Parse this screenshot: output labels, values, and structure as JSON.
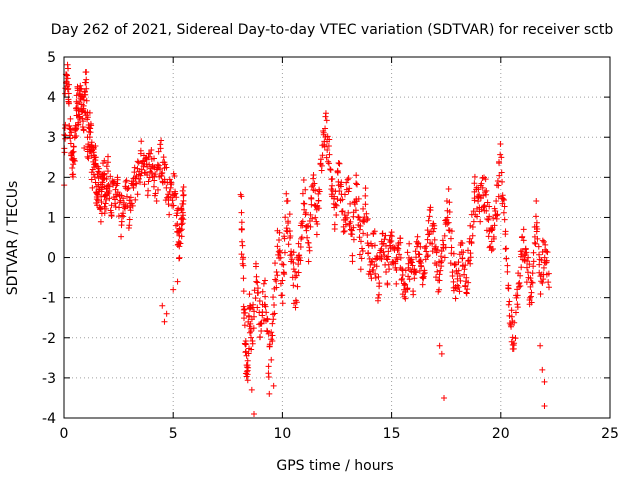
{
  "chart_data": {
    "type": "scatter",
    "title": "Day 262 of 2021, Sidereal Day-to-day VTEC variation (SDTVAR) for receiver sctb",
    "xlabel": "GPS time / hours",
    "ylabel": "SDTVAR / TECUs",
    "xlim": [
      0,
      25
    ],
    "ylim": [
      -4,
      5
    ],
    "xticks": [
      0,
      5,
      10,
      15,
      20,
      25
    ],
    "yticks": [
      -4,
      -3,
      -2,
      -1,
      0,
      1,
      2,
      3,
      4,
      5
    ],
    "grid": true,
    "marker": "+",
    "series_color": "#ff0000",
    "trace": [
      [
        0.0,
        2.0
      ],
      [
        0.1,
        4.7
      ],
      [
        0.2,
        4.3
      ],
      [
        0.3,
        3.0
      ],
      [
        0.4,
        2.0
      ],
      [
        0.5,
        2.8
      ],
      [
        0.6,
        4.0
      ],
      [
        0.7,
        3.6
      ],
      [
        0.8,
        4.1
      ],
      [
        0.9,
        3.2
      ],
      [
        1.0,
        4.3
      ],
      [
        1.1,
        2.8
      ],
      [
        1.2,
        3.2
      ],
      [
        1.3,
        2.2
      ],
      [
        1.4,
        2.6
      ],
      [
        1.5,
        1.7
      ],
      [
        1.6,
        2.0
      ],
      [
        1.7,
        1.3
      ],
      [
        1.8,
        2.1
      ],
      [
        1.9,
        1.5
      ],
      [
        2.0,
        2.2
      ],
      [
        2.2,
        1.4
      ],
      [
        2.4,
        1.8
      ],
      [
        2.6,
        1.0
      ],
      [
        2.8,
        1.6
      ],
      [
        3.0,
        1.1
      ],
      [
        3.2,
        1.8
      ],
      [
        3.4,
        2.1
      ],
      [
        3.6,
        2.6
      ],
      [
        3.8,
        2.0
      ],
      [
        4.0,
        2.5
      ],
      [
        4.2,
        1.7
      ],
      [
        4.4,
        2.6
      ],
      [
        4.6,
        2.2
      ],
      [
        4.8,
        1.5
      ],
      [
        5.0,
        1.8
      ],
      [
        5.2,
        0.9
      ],
      [
        5.3,
        0.3
      ],
      [
        5.4,
        1.2
      ],
      [
        5.5,
        1.3
      ],
      [
        8.1,
        1.4
      ],
      [
        8.2,
        -0.3
      ],
      [
        8.3,
        -2.2
      ],
      [
        8.4,
        -3.0
      ],
      [
        8.5,
        -1.2
      ],
      [
        8.6,
        -2.0
      ],
      [
        8.8,
        -0.4
      ],
      [
        9.0,
        -1.8
      ],
      [
        9.2,
        -0.8
      ],
      [
        9.4,
        -2.6
      ],
      [
        9.6,
        -1.3
      ],
      [
        9.8,
        0.5
      ],
      [
        10.0,
        -0.8
      ],
      [
        10.2,
        1.3
      ],
      [
        10.4,
        0.3
      ],
      [
        10.6,
        -1.0
      ],
      [
        10.8,
        0.2
      ],
      [
        11.0,
        1.6
      ],
      [
        11.2,
        0.4
      ],
      [
        11.4,
        1.8
      ],
      [
        11.6,
        0.9
      ],
      [
        11.8,
        2.6
      ],
      [
        12.0,
        3.2
      ],
      [
        12.2,
        2.3
      ],
      [
        12.4,
        1.1
      ],
      [
        12.6,
        2.2
      ],
      [
        12.8,
        1.0
      ],
      [
        13.0,
        1.6
      ],
      [
        13.2,
        0.3
      ],
      [
        13.4,
        1.8
      ],
      [
        13.6,
        0.2
      ],
      [
        13.8,
        1.3
      ],
      [
        14.0,
        -0.3
      ],
      [
        14.2,
        0.3
      ],
      [
        14.4,
        -0.7
      ],
      [
        14.6,
        0.6
      ],
      [
        14.8,
        -0.4
      ],
      [
        15.0,
        0.4
      ],
      [
        15.2,
        -0.3
      ],
      [
        15.4,
        0.2
      ],
      [
        15.6,
        -0.9
      ],
      [
        15.8,
        -0.1
      ],
      [
        16.0,
        -0.6
      ],
      [
        16.2,
        0.2
      ],
      [
        16.4,
        -0.4
      ],
      [
        16.6,
        0.4
      ],
      [
        16.8,
        0.9
      ],
      [
        17.0,
        0.1
      ],
      [
        17.2,
        -0.6
      ],
      [
        17.4,
        0.2
      ],
      [
        17.6,
        1.3
      ],
      [
        17.8,
        -0.2
      ],
      [
        18.0,
        -0.9
      ],
      [
        18.2,
        0.1
      ],
      [
        18.4,
        -0.7
      ],
      [
        18.6,
        0.4
      ],
      [
        18.8,
        1.6
      ],
      [
        19.0,
        1.2
      ],
      [
        19.2,
        1.8
      ],
      [
        19.4,
        1.0
      ],
      [
        19.6,
        0.2
      ],
      [
        19.8,
        1.1
      ],
      [
        20.0,
        2.5
      ],
      [
        20.2,
        0.4
      ],
      [
        20.4,
        -1.2
      ],
      [
        20.6,
        -2.0
      ],
      [
        20.8,
        -0.8
      ],
      [
        21.0,
        0.4
      ],
      [
        21.2,
        -0.3
      ],
      [
        21.4,
        -1.1
      ],
      [
        21.6,
        1.0
      ],
      [
        21.8,
        -0.5
      ],
      [
        22.0,
        0.2
      ],
      [
        22.2,
        -0.4
      ]
    ],
    "outliers": [
      [
        4.5,
        -1.2
      ],
      [
        4.6,
        -1.6
      ],
      [
        4.7,
        -1.4
      ],
      [
        5.0,
        -0.8
      ],
      [
        5.2,
        -0.6
      ],
      [
        8.6,
        -3.3
      ],
      [
        8.7,
        -3.9
      ],
      [
        9.4,
        -3.4
      ],
      [
        9.6,
        -3.2
      ],
      [
        17.2,
        -2.2
      ],
      [
        17.3,
        -2.4
      ],
      [
        17.4,
        -3.5
      ],
      [
        20.5,
        -2.1
      ],
      [
        21.8,
        -2.2
      ],
      [
        21.9,
        -2.8
      ],
      [
        22.0,
        -3.1
      ],
      [
        22.0,
        -3.7
      ]
    ]
  }
}
